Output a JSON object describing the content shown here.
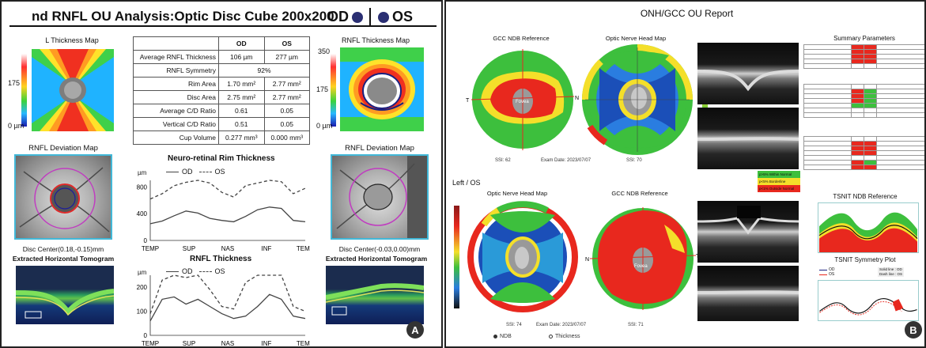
{
  "panel_a": {
    "title": "nd RNFL OU Analysis:Optic Disc Cube 200x200",
    "od_label": "OD",
    "os_label": "OS",
    "left_map_title": "L Thickness Map",
    "right_map_title": "RNFL Thickness Map",
    "scale_top": "350",
    "scale_mid": "175",
    "scale_bottom": "0 µm",
    "table": {
      "headers": [
        "",
        "OD",
        "OS"
      ],
      "rows": [
        {
          "label": "Average RNFL Thickness",
          "od": "106 µm",
          "os": "277 µm"
        },
        {
          "label": "RNFL Symmetry",
          "both": "92%"
        },
        {
          "label": "Rim Area",
          "od": "1.70 mm²",
          "os": "2.77 mm²"
        },
        {
          "label": "Disc Area",
          "od": "2.75 mm²",
          "os": "2.77 mm²"
        },
        {
          "label": "Average C/D Ratio",
          "od": "0.61",
          "os": "0.05"
        },
        {
          "label": "Vertical C/D Ratio",
          "od": "0.51",
          "os": "0.05"
        },
        {
          "label": "Cup Volume",
          "od": "0.277 mm³",
          "os": "0.000 mm³"
        }
      ]
    },
    "dev_left_title": "RNFL Deviation Map",
    "dev_right_title": "RNFL Deviation Map",
    "disc_center_left": "Disc Center(0.18,-0.15)mm",
    "disc_center_right": "Disc Center(-0.03,0.00)mm",
    "tomo_left_title": "Extracted Horizontal Tomogram",
    "tomo_right_title": "Extracted Horizontal Tomogram",
    "badge": "A",
    "rim_chart": {
      "title": "Neuro-retinal Rim Thickness",
      "unit": "µm",
      "legend_od": "OD",
      "legend_os": "OS",
      "y_ticks": [
        "800",
        "400",
        "0"
      ],
      "categories": [
        "TEMP",
        "SUP",
        "NAS",
        "INF",
        "TEMP"
      ]
    },
    "rnfl_chart": {
      "title": "RNFL Thickness",
      "unit": "µm",
      "legend_od": "OD",
      "legend_os": "OS",
      "y_ticks": [
        "200",
        "100",
        "0"
      ],
      "categories": [
        "TEMP",
        "SUP",
        "NAS",
        "INF",
        "TEMP"
      ]
    }
  },
  "chart_data": [
    {
      "type": "line",
      "title": "Neuro-retinal Rim Thickness",
      "ylabel": "µm",
      "ylim": [
        0,
        900
      ],
      "x_ticks": [
        "TEMP",
        "SUP",
        "NAS",
        "INF",
        "TEMP"
      ],
      "series": [
        {
          "name": "OD",
          "style": "solid",
          "values": [
            250,
            290,
            370,
            440,
            410,
            330,
            300,
            280,
            360,
            460,
            500,
            480,
            300,
            280
          ]
        },
        {
          "name": "OS",
          "style": "dashed",
          "values": [
            620,
            700,
            820,
            870,
            900,
            860,
            720,
            650,
            820,
            860,
            900,
            880,
            700,
            780
          ]
        }
      ]
    },
    {
      "type": "line",
      "title": "RNFL Thickness",
      "ylabel": "µm",
      "ylim": [
        0,
        250
      ],
      "x_ticks": [
        "TEMP",
        "SUP",
        "NAS",
        "INF",
        "TEMP"
      ],
      "series": [
        {
          "name": "OD",
          "style": "solid",
          "values": [
            60,
            150,
            160,
            130,
            150,
            120,
            90,
            70,
            80,
            120,
            170,
            150,
            80,
            70
          ]
        },
        {
          "name": "OS",
          "style": "dashed",
          "values": [
            90,
            230,
            250,
            240,
            250,
            190,
            120,
            110,
            220,
            270,
            260,
            250,
            120,
            100
          ]
        }
      ]
    }
  ],
  "panel_b": {
    "title": "ONH/GCC OU Report",
    "gcc_top": "GCC NDB Reference",
    "onh_top": "Optic Nerve Head Map",
    "onh_bottom": "Optic Nerve Head Map",
    "gcc_bottom": "GCC NDB Reference",
    "left_os": "Left / OS",
    "summary_title": "Summary Parameters",
    "tsnit_ndb": "TSNIT NDB Reference",
    "tsnit_sym": "TSNIT Symmetry Plot",
    "sym_legend_od": "OD",
    "sym_legend_os": "OS",
    "sym_note1": "Solid line : OD",
    "sym_note2": "Dash line : OS",
    "legend_normal": "p>5% Within Normal",
    "legend_border": "p<5% Borderline",
    "legend_outside": "p<1% Outside Normal",
    "ssi_1": "SSI: 62",
    "exam_1": "Exam Date: 2023/07/07",
    "ssi_2": "SSI: 70",
    "ssi_3": "SSI: 74",
    "exam_3": "Exam Date: 2023/07/07",
    "ssi_4": "SSI: 71",
    "radio_ndb": "NDB",
    "radio_thickness": "Thickness",
    "fovea": "Fovea",
    "badge": "B"
  }
}
